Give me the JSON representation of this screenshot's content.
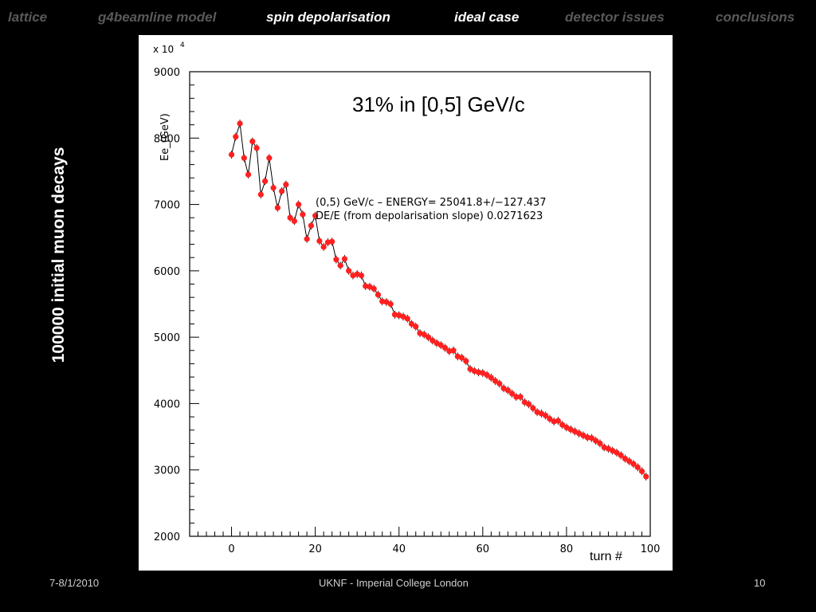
{
  "nav": {
    "items": [
      {
        "label": "lattice",
        "active": false
      },
      {
        "label": "g4beamline model",
        "active": false
      },
      {
        "label": "spin depolarisation",
        "active": true
      },
      {
        "label": "ideal case",
        "active": true
      },
      {
        "label": "detector issues",
        "active": false
      },
      {
        "label": "conclusions",
        "active": false
      }
    ]
  },
  "side_label": "100000 initial muon decays",
  "footer": {
    "date": "7-8/1/2010",
    "center": "UKNF - Imperial College London",
    "page": "10"
  },
  "colors": {
    "background": "#000000",
    "nav_inactive": "#595959",
    "nav_active": "#ffffff",
    "marker": "#ff2020",
    "fit_line": "#000000"
  },
  "chart_data": {
    "type": "scatter",
    "title": "31% in [0,5] GeV/c",
    "xlabel": "turn #",
    "ylabel": "Ee_(GeV)",
    "y_multiplier": "x 10",
    "y_multiplier_exponent": "4",
    "xlim": [
      -10,
      100
    ],
    "ylim": [
      2000,
      9000
    ],
    "x_ticks": [
      0,
      20,
      40,
      60,
      80,
      100
    ],
    "y_ticks": [
      2000,
      3000,
      4000,
      5000,
      6000,
      7000,
      8000,
      9000
    ],
    "annotations": [
      "(0,5) GeV/c  – ENERGY= 25041.8+/−127.437",
      "DE/E (from depolarisation slope)  0.0271623"
    ],
    "grid": false,
    "series": [
      {
        "x": [
          0,
          1,
          2,
          3,
          4,
          5,
          6,
          7,
          8,
          9,
          10,
          11,
          12,
          13,
          14,
          15,
          16,
          17,
          18,
          19,
          20,
          21,
          22,
          23,
          24,
          25,
          26,
          27,
          28,
          29,
          30,
          31,
          32,
          33,
          34,
          35,
          36,
          37,
          38,
          39,
          40,
          41,
          42,
          43,
          44,
          45,
          46,
          47,
          48,
          49,
          50,
          51,
          52,
          53,
          54,
          55,
          56,
          57,
          58,
          59,
          60,
          61,
          62,
          63,
          64,
          65,
          66,
          67,
          68,
          69,
          70,
          71,
          72,
          73,
          74,
          75,
          76,
          77,
          78,
          79,
          80,
          81,
          82,
          83,
          84,
          85,
          86,
          87,
          88,
          89,
          90,
          91,
          92,
          93,
          94,
          95,
          96,
          97,
          98,
          99
        ],
        "y": [
          7750,
          8020,
          8220,
          7700,
          7450,
          7950,
          7850,
          7150,
          7350,
          7700,
          7250,
          6950,
          7200,
          7300,
          6800,
          6750,
          7000,
          6850,
          6480,
          6680,
          6830,
          6450,
          6360,
          6430,
          6440,
          6170,
          6080,
          6180,
          6000,
          5930,
          5950,
          5930,
          5770,
          5760,
          5730,
          5640,
          5540,
          5530,
          5500,
          5340,
          5330,
          5310,
          5280,
          5200,
          5160,
          5060,
          5040,
          5000,
          4950,
          4910,
          4880,
          4840,
          4790,
          4800,
          4710,
          4690,
          4640,
          4520,
          4490,
          4470,
          4460,
          4430,
          4390,
          4340,
          4300,
          4230,
          4200,
          4150,
          4100,
          4100,
          4020,
          3990,
          3930,
          3870,
          3850,
          3820,
          3770,
          3730,
          3740,
          3680,
          3640,
          3610,
          3580,
          3550,
          3520,
          3490,
          3480,
          3440,
          3400,
          3340,
          3320,
          3290,
          3260,
          3220,
          3170,
          3130,
          3090,
          3040,
          2980,
          2900
        ]
      }
    ]
  }
}
